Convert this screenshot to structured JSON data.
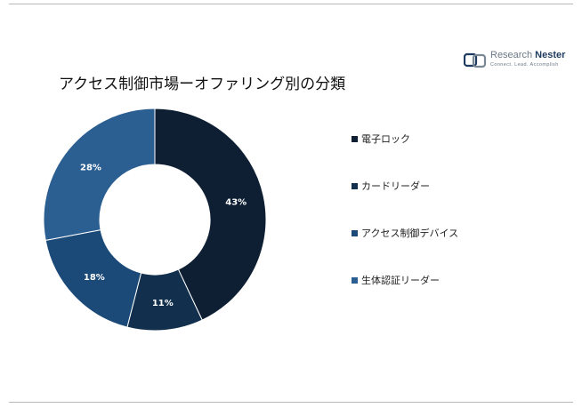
{
  "title": "アクセス制御市場ーオファリング別の分類",
  "logo": {
    "name_regular": "Research ",
    "name_bold": "Nester",
    "tagline": "Connect. Lead. Accomplish"
  },
  "colors": {
    "background": "#ffffff",
    "slice_1": "#0e1f33",
    "slice_2": "#12304e",
    "slice_3": "#1b4a78",
    "slice_4": "#2b5f92",
    "label_text": "#ffffff"
  },
  "chart_data": {
    "type": "pie",
    "variant": "donut",
    "title": "アクセス制御市場ーオファリング別の分類",
    "categories": [
      "電子ロック",
      "カードリーダー",
      "アクセス制御デバイス",
      "生体認証リーダー"
    ],
    "values": [
      43,
      11,
      18,
      28
    ],
    "data_labels": [
      "43%",
      "11%",
      "18%",
      "28%"
    ],
    "legend_position": "right",
    "start_angle_deg": 0,
    "direction": "clockwise"
  }
}
